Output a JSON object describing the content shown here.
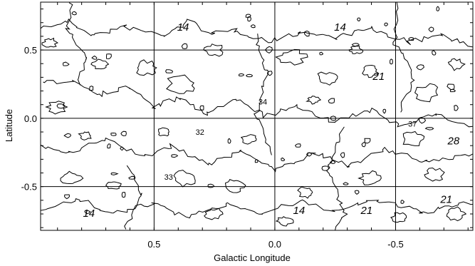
{
  "chart_data": {
    "type": "contour",
    "xlabel": "Galactic Longitude",
    "ylabel": "Latitude",
    "xlim": [
      0.97,
      -0.82
    ],
    "ylim": [
      -0.82,
      0.85
    ],
    "x_ticks": [
      {
        "value": 0.5,
        "label": "0.5"
      },
      {
        "value": 0.0,
        "label": "0.0"
      },
      {
        "value": -0.5,
        "label": "-0.5"
      }
    ],
    "y_ticks": [
      {
        "value": 0.5,
        "label": "0.5"
      },
      {
        "value": 0.0,
        "label": "0.0"
      },
      {
        "value": -0.5,
        "label": "-0.5"
      }
    ],
    "grid": true,
    "contour_levels": [
      14,
      21,
      28,
      32,
      33,
      34,
      37
    ],
    "contour_labels": [
      {
        "text": "14",
        "l": 0.38,
        "b": 0.64,
        "size": "big"
      },
      {
        "text": "14",
        "l": -0.27,
        "b": 0.64,
        "size": "big"
      },
      {
        "text": "21",
        "l": -0.43,
        "b": 0.28,
        "size": "big"
      },
      {
        "text": "34",
        "l": 0.05,
        "b": 0.1,
        "size": "small"
      },
      {
        "text": "32",
        "l": 0.31,
        "b": -0.12,
        "size": "small"
      },
      {
        "text": "37",
        "l": -0.57,
        "b": -0.06,
        "size": "small"
      },
      {
        "text": "28",
        "l": -0.74,
        "b": -0.19,
        "size": "big"
      },
      {
        "text": "33",
        "l": 0.44,
        "b": -0.45,
        "size": "small"
      },
      {
        "text": "14",
        "l": 0.77,
        "b": -0.72,
        "size": "big"
      },
      {
        "text": "14",
        "l": -0.1,
        "b": -0.7,
        "size": "big"
      },
      {
        "text": "21",
        "l": -0.38,
        "b": -0.7,
        "size": "big"
      },
      {
        "text": "21",
        "l": -0.71,
        "b": -0.62,
        "size": "big"
      }
    ]
  }
}
